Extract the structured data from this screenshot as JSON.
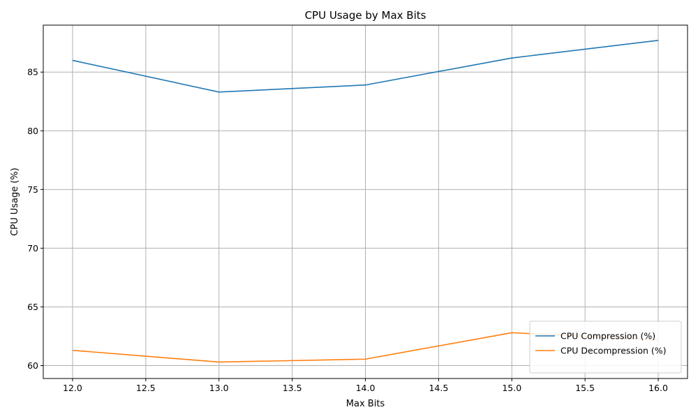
{
  "chart_data": {
    "type": "line",
    "title": "CPU Usage by Max Bits",
    "xlabel": "Max Bits",
    "ylabel": "CPU Usage (%)",
    "x": [
      12,
      13,
      14,
      15,
      16
    ],
    "xlim": [
      11.8,
      16.2
    ],
    "ylim": [
      58.9,
      89.0
    ],
    "xticks": [
      12.0,
      12.5,
      13.0,
      13.5,
      14.0,
      14.5,
      15.0,
      15.5,
      16.0
    ],
    "xtick_labels": [
      "12.0",
      "12.5",
      "13.0",
      "13.5",
      "14.0",
      "14.5",
      "15.0",
      "15.5",
      "16.0"
    ],
    "yticks": [
      60,
      65,
      70,
      75,
      80,
      85
    ],
    "ytick_labels": [
      "60",
      "65",
      "70",
      "75",
      "80",
      "85"
    ],
    "grid": true,
    "legend_position": "lower-right",
    "series": [
      {
        "name": "CPU Compression (%)",
        "color": "#1f77b4",
        "values": [
          86.0,
          83.3,
          83.9,
          86.2,
          87.7
        ]
      },
      {
        "name": "CPU Decompression (%)",
        "color": "#ff7f0e",
        "values": [
          61.3,
          60.3,
          60.55,
          62.8,
          62.2
        ]
      }
    ]
  }
}
